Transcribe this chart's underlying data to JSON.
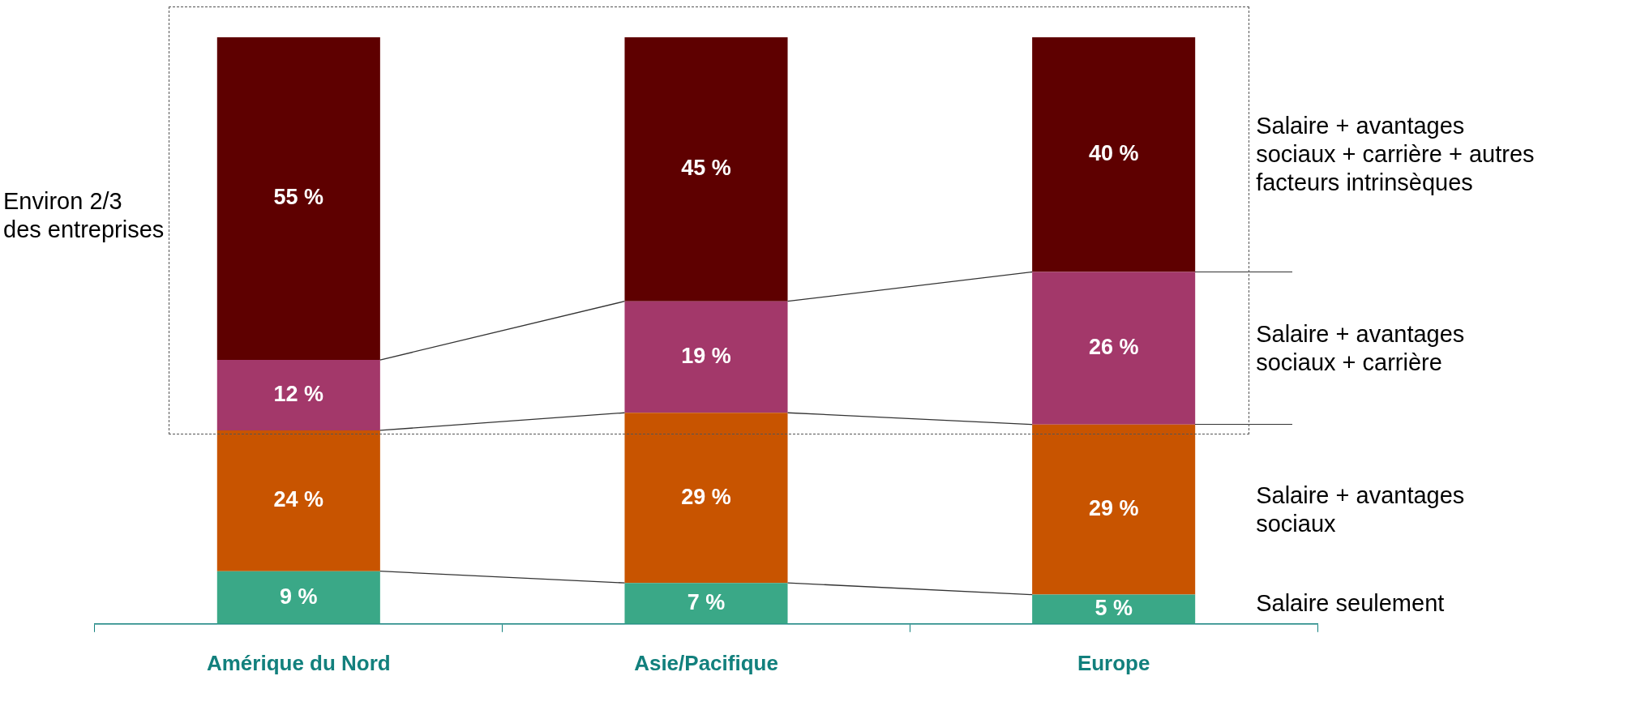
{
  "chart_data": {
    "type": "bar",
    "stacked": true,
    "categories": [
      "Amérique du Nord",
      "Asie/Pacifique",
      "Europe"
    ],
    "series": [
      {
        "name": "Salaire seulement",
        "color": "#3aa887",
        "values": [
          9,
          7,
          5
        ],
        "value_labels": [
          "9 %",
          "7 %",
          "5 %"
        ]
      },
      {
        "name": "Salaire + avantages sociaux",
        "color": "#c85400",
        "values": [
          24,
          29,
          29
        ],
        "value_labels": [
          "24 %",
          "29 %",
          "29 %"
        ]
      },
      {
        "name": "Salaire + avantages sociaux + carrière",
        "color": "#a3386a",
        "values": [
          12,
          19,
          26
        ],
        "value_labels": [
          "12 %",
          "19 %",
          "26 %"
        ]
      },
      {
        "name": "Salaire + avantages sociaux + carrière + autres facteurs intrinsèques",
        "color": "#5e0000",
        "values": [
          55,
          45,
          40
        ],
        "value_labels": [
          "55 %",
          "45 %",
          "40 %"
        ]
      }
    ],
    "ylim": [
      0,
      100
    ],
    "legend": false,
    "grid": false,
    "tick_labels": "x",
    "annotations": [
      "Environ 2/3 des entreprises"
    ]
  }
}
